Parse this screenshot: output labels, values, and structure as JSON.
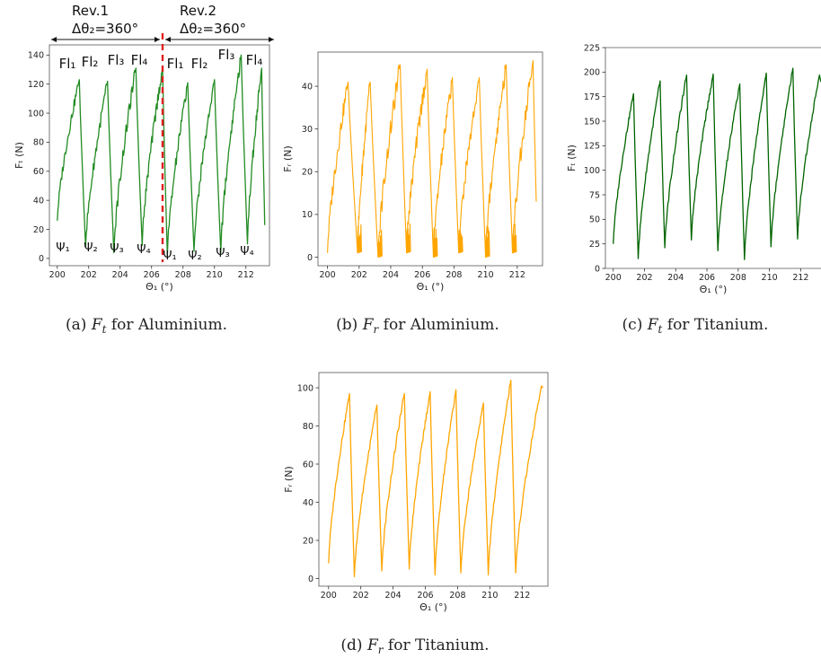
{
  "chart_data": [
    {
      "id": "a",
      "type": "line",
      "caption_prefix": "(a) ",
      "caption_sym": "F",
      "caption_sub": "t",
      "caption_rest": " for Aluminium.",
      "xlabel": "Θ₁ (°)",
      "ylabel": "Fₜ (N)",
      "xlim": [
        199.5,
        213.5
      ],
      "ylim": [
        -5,
        147
      ],
      "xticks": [
        "200",
        "202",
        "204",
        "206",
        "208",
        "210",
        "212"
      ],
      "yticks": [
        "0",
        "20",
        "40",
        "60",
        "80",
        "100",
        "120",
        "140"
      ],
      "color": "#228B22",
      "cycles": [
        {
          "start": 200.0,
          "peak_x": 201.4,
          "low_x": 201.8,
          "min": 26,
          "max": 123,
          "low": 8
        },
        {
          "start": 201.8,
          "peak_x": 203.2,
          "low_x": 203.6,
          "min": 8,
          "max": 122,
          "low": 4
        },
        {
          "start": 203.6,
          "peak_x": 205.0,
          "low_x": 205.4,
          "min": 4,
          "max": 131,
          "low": 9
        },
        {
          "start": 205.4,
          "peak_x": 206.7,
          "low_x": 207.0,
          "min": 9,
          "max": 131,
          "low": 2
        },
        {
          "start": 207.0,
          "peak_x": 208.3,
          "low_x": 208.7,
          "min": 2,
          "max": 121,
          "low": 5
        },
        {
          "start": 208.7,
          "peak_x": 210.0,
          "low_x": 210.4,
          "min": 5,
          "max": 123,
          "low": 4
        },
        {
          "start": 210.4,
          "peak_x": 211.7,
          "low_x": 212.1,
          "min": 4,
          "max": 140,
          "low": 10
        },
        {
          "start": 212.1,
          "peak_x": 213.0,
          "low_x": 213.2,
          "min": 10,
          "max": 131,
          "low": 23
        }
      ],
      "annotations": {
        "rev1": "Rev.1",
        "rev2": "Rev.2",
        "delta1": "Δθ₂=360°",
        "delta2": "Δθ₂=360°",
        "flutes": [
          "Fl₁",
          "Fl₂",
          "Fl₃",
          "Fl₄",
          "Fl₁",
          "Fl₂",
          "Fl₃",
          "Fl₄"
        ],
        "psi": [
          "Ψ₁",
          "Ψ₂",
          "Ψ₃",
          "Ψ₄",
          "Ψ₁",
          "Ψ₂",
          "Ψ₃",
          "Ψ₄"
        ],
        "divider_x": 206.7
      }
    },
    {
      "id": "b",
      "type": "line",
      "caption_prefix": "(b) ",
      "caption_sym": "F",
      "caption_sub": "r",
      "caption_rest": " for Aluminium.",
      "xlabel": "Θ₁ (°)",
      "ylabel": "Fᵣ (N)",
      "xlim": [
        199.4,
        213.6
      ],
      "ylim": [
        -2,
        48
      ],
      "xticks": [
        "200",
        "202",
        "204",
        "206",
        "208",
        "210",
        "212"
      ],
      "yticks": [
        "0",
        "10",
        "20",
        "30",
        "40"
      ],
      "color": "#FFA500",
      "cycles": [
        {
          "start": 200.0,
          "peak_x": 201.3,
          "low_x": 201.9,
          "min": 1,
          "max": 41,
          "low": 1
        },
        {
          "start": 201.9,
          "peak_x": 202.7,
          "low_x": 203.2,
          "min": 1,
          "max": 41,
          "low": 0
        },
        {
          "start": 203.2,
          "peak_x": 204.6,
          "low_x": 205.0,
          "min": 0,
          "max": 45,
          "low": 1
        },
        {
          "start": 205.0,
          "peak_x": 206.3,
          "low_x": 206.7,
          "min": 1,
          "max": 44,
          "low": 0
        },
        {
          "start": 206.7,
          "peak_x": 207.9,
          "low_x": 208.3,
          "min": 0,
          "max": 42,
          "low": 1
        },
        {
          "start": 208.3,
          "peak_x": 209.6,
          "low_x": 210.0,
          "min": 1,
          "max": 42,
          "low": 0
        },
        {
          "start": 210.0,
          "peak_x": 211.3,
          "low_x": 211.7,
          "min": 0,
          "max": 45,
          "low": 1
        },
        {
          "start": 211.7,
          "peak_x": 213.0,
          "low_x": 213.2,
          "min": 1,
          "max": 46,
          "low": 13
        }
      ]
    },
    {
      "id": "c",
      "type": "line",
      "caption_prefix": "(c) ",
      "caption_sym": "F",
      "caption_sub": "t",
      "caption_rest": " for Titanium.",
      "xlabel": "Θ₁ (°)",
      "ylabel": "Fₜ (N)",
      "xlim": [
        199.5,
        213.3
      ],
      "ylim": [
        0,
        225
      ],
      "xticks": [
        "200",
        "202",
        "204",
        "206",
        "208",
        "210",
        "212"
      ],
      "yticks": [
        "0",
        "25",
        "50",
        "75",
        "100",
        "125",
        "150",
        "175",
        "200",
        "225"
      ],
      "color": "#006400",
      "cycles": [
        {
          "start": 200.0,
          "peak_x": 201.3,
          "low_x": 201.6,
          "min": 25,
          "max": 178,
          "low": 10
        },
        {
          "start": 201.6,
          "peak_x": 203.0,
          "low_x": 203.3,
          "min": 10,
          "max": 191,
          "low": 21
        },
        {
          "start": 203.3,
          "peak_x": 204.7,
          "low_x": 205.0,
          "min": 21,
          "max": 197,
          "low": 29
        },
        {
          "start": 205.0,
          "peak_x": 206.4,
          "low_x": 206.7,
          "min": 29,
          "max": 198,
          "low": 18
        },
        {
          "start": 206.7,
          "peak_x": 208.1,
          "low_x": 208.4,
          "min": 18,
          "max": 188,
          "low": 9
        },
        {
          "start": 208.4,
          "peak_x": 209.8,
          "low_x": 210.1,
          "min": 9,
          "max": 199,
          "low": 22
        },
        {
          "start": 210.1,
          "peak_x": 211.5,
          "low_x": 211.8,
          "min": 22,
          "max": 204,
          "low": 30
        },
        {
          "start": 211.8,
          "peak_x": 213.2,
          "low_x": 213.3,
          "min": 30,
          "max": 197,
          "low": 190
        }
      ]
    },
    {
      "id": "d",
      "type": "line",
      "caption_prefix": "(d) ",
      "caption_sym": "F",
      "caption_sub": "r",
      "caption_rest": " for Titanium.",
      "xlabel": "Θ₁ (°)",
      "ylabel": "Fᵣ (N)",
      "xlim": [
        199.4,
        213.6
      ],
      "ylim": [
        -4,
        108
      ],
      "xticks": [
        "200",
        "202",
        "204",
        "206",
        "208",
        "210",
        "212"
      ],
      "yticks": [
        "0",
        "20",
        "40",
        "60",
        "80",
        "100"
      ],
      "color": "#FFA500",
      "cycles": [
        {
          "start": 200.0,
          "peak_x": 201.3,
          "low_x": 201.6,
          "min": 8,
          "max": 97,
          "low": 1
        },
        {
          "start": 201.6,
          "peak_x": 203.0,
          "low_x": 203.3,
          "min": 1,
          "max": 91,
          "low": 4
        },
        {
          "start": 203.3,
          "peak_x": 204.7,
          "low_x": 205.0,
          "min": 4,
          "max": 97,
          "low": 5
        },
        {
          "start": 205.0,
          "peak_x": 206.3,
          "low_x": 206.6,
          "min": 5,
          "max": 98,
          "low": 2
        },
        {
          "start": 206.6,
          "peak_x": 207.9,
          "low_x": 208.2,
          "min": 2,
          "max": 99,
          "low": 3
        },
        {
          "start": 208.2,
          "peak_x": 209.6,
          "low_x": 209.9,
          "min": 3,
          "max": 92,
          "low": 2
        },
        {
          "start": 209.9,
          "peak_x": 211.3,
          "low_x": 211.6,
          "min": 2,
          "max": 104,
          "low": 3
        },
        {
          "start": 211.6,
          "peak_x": 213.2,
          "low_x": 213.3,
          "min": 3,
          "max": 101,
          "low": 100
        }
      ]
    }
  ]
}
